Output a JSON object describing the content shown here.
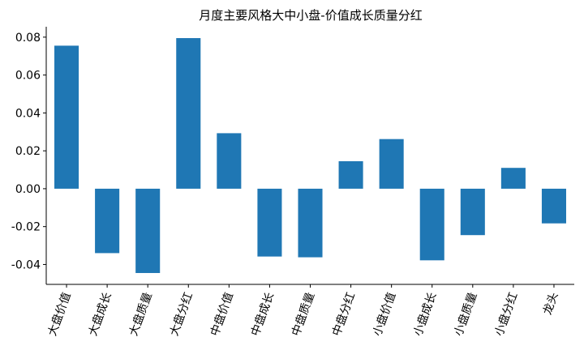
{
  "chart_data": {
    "type": "bar",
    "title": "月度主要风格大中小盘-价值成长质量分红",
    "xlabel": "",
    "ylabel": "",
    "categories": [
      "大盘价值",
      "大盘成长",
      "大盘质量",
      "大盘分红",
      "中盘价值",
      "中盘成长",
      "中盘质量",
      "中盘分红",
      "小盘价值",
      "小盘成长",
      "小盘质量",
      "小盘分红",
      "龙头"
    ],
    "values": [
      0.0755,
      -0.034,
      -0.0445,
      0.0795,
      0.0293,
      -0.0358,
      -0.0362,
      0.0145,
      0.0262,
      -0.0378,
      -0.0245,
      0.011,
      -0.0183
    ],
    "ylim": [
      -0.0505,
      0.0855
    ],
    "yticks": [
      -0.04,
      -0.02,
      0.0,
      0.02,
      0.04,
      0.06,
      0.08
    ],
    "ytick_labels": [
      "-0.04",
      "-0.02",
      "0.00",
      "0.02",
      "0.04",
      "0.06",
      "0.08"
    ],
    "bar_color": "#1f77b4",
    "grid": false,
    "legend": "none"
  }
}
